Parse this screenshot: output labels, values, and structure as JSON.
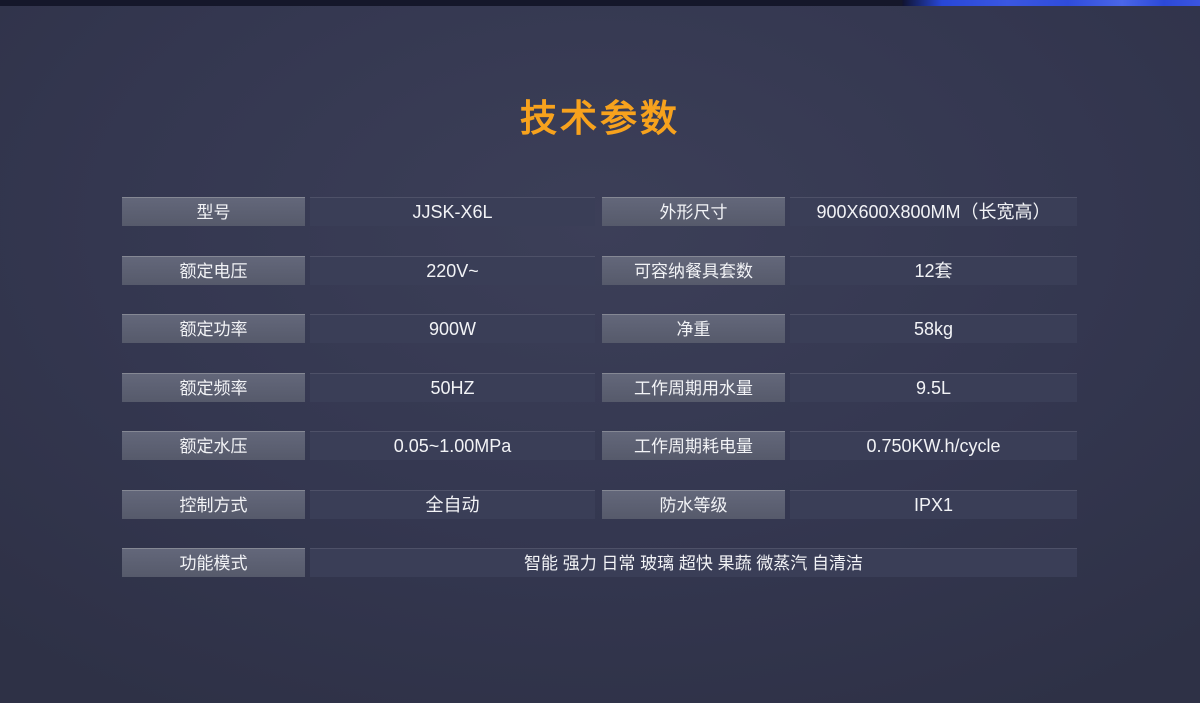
{
  "page": {
    "title": "技术参数",
    "title_color": "#F7A21D",
    "background_color": "#343750",
    "top_strip_blue": "#2c49d9"
  },
  "spec_table": {
    "colors": {
      "label_bg": "#5b5f6f",
      "value_bg": "#3a3e57",
      "text": "#f2f3f6"
    },
    "rows": [
      {
        "cells": [
          {
            "label": "型号",
            "value": "JJSK-X6L"
          },
          {
            "label": "外形尺寸",
            "value": "900X600X800MM（长宽高）"
          }
        ]
      },
      {
        "cells": [
          {
            "label": "额定电压",
            "value": "220V~"
          },
          {
            "label": "可容纳餐具套数",
            "value": "12套"
          }
        ]
      },
      {
        "cells": [
          {
            "label": "额定功率",
            "value": "900W"
          },
          {
            "label": "净重",
            "value": "58kg"
          }
        ]
      },
      {
        "cells": [
          {
            "label": "额定频率",
            "value": "50HZ"
          },
          {
            "label": "工作周期用水量",
            "value": "9.5L"
          }
        ]
      },
      {
        "cells": [
          {
            "label": "额定水压",
            "value": "0.05~1.00MPa"
          },
          {
            "label": "工作周期耗电量",
            "value": "0.750KW.h/cycle"
          }
        ]
      },
      {
        "cells": [
          {
            "label": "控制方式",
            "value": "全自动"
          },
          {
            "label": "防水等级",
            "value": "IPX1"
          }
        ]
      },
      {
        "cells": [
          {
            "label": "功能模式",
            "value": "智能 强力 日常 玻璃 超快 果蔬 微蒸汽 自清洁",
            "full_width": true
          }
        ]
      }
    ]
  }
}
